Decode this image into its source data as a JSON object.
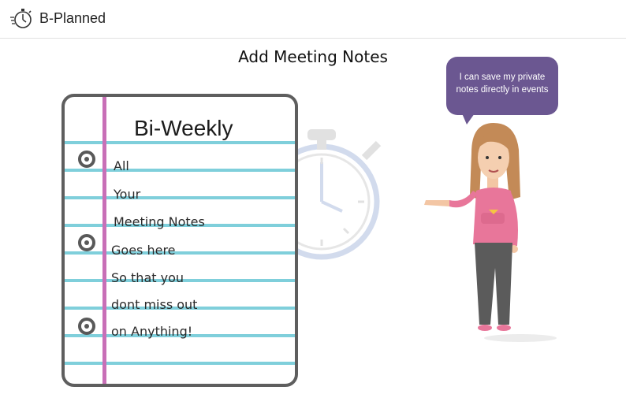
{
  "header": {
    "app_name": "B-Planned",
    "logo_icon": "stopwatch-icon"
  },
  "page": {
    "title": "Add Meeting Notes"
  },
  "notebook": {
    "title": "Bi-Weekly",
    "lines": [
      "All",
      "Your",
      "Meeting Notes",
      "Goes here",
      "So that you",
      "dont miss out",
      "on Anything!"
    ]
  },
  "speech_bubble": {
    "text": "I can save my private notes directly in events"
  },
  "colors": {
    "rule": "#7fcfdb",
    "margin": "#c86fb7",
    "bubble": "#6b5791",
    "hoodie": "#e8769a"
  }
}
